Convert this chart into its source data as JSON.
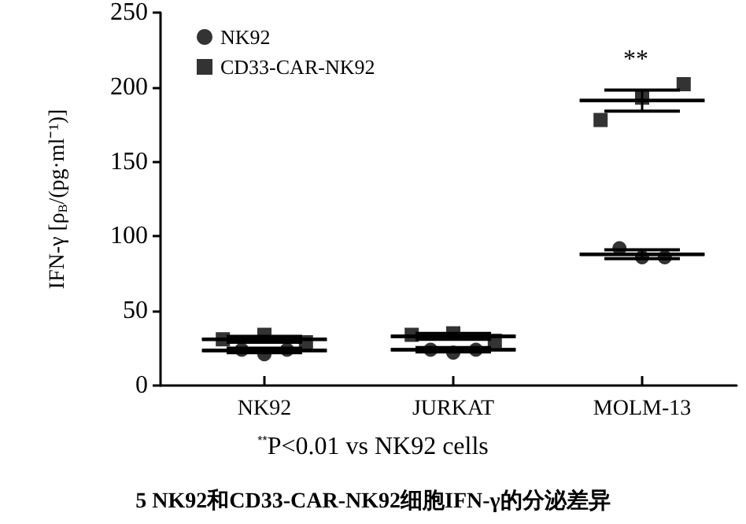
{
  "chart_data": {
    "type": "scatter",
    "title": "5 NK92和CD33-CAR-NK92细胞IFN-γ的分泌差异",
    "ylabel": "IFN-γ [ρ$_{B}$/(pg·ml⁻¹)]",
    "categories": [
      "NK92",
      "JURKAT",
      "MOLM-13"
    ],
    "series": [
      {
        "name": "NK92",
        "marker": "circle",
        "color": "#000000",
        "x": [
          "NK92",
          "NK92",
          "NK92",
          "JURKAT",
          "JURKAT",
          "JURKAT",
          "MOLM-13",
          "MOLM-13",
          "MOLM-13"
        ],
        "values": [
          24,
          21,
          24,
          24,
          22,
          24,
          92,
          86,
          86
        ]
      },
      {
        "name": "CD33-CAR-NK92",
        "marker": "square",
        "color": "#000000",
        "x": [
          "NK92",
          "NK92",
          "NK92",
          "JURKAT",
          "JURKAT",
          "JURKAT",
          "MOLM-13",
          "MOLM-13",
          "MOLM-13"
        ],
        "values": [
          31,
          34,
          29,
          34,
          35,
          30,
          178,
          193,
          202
        ]
      },
      {
        "type": "box",
        "color": "#000000",
        "boxes": [
          {
            "low": 22,
            "q1": 23.5,
            "median": 23.5,
            "q3": 23.5,
            "high": 25
          },
          {
            "low": 22.5,
            "q1": 24,
            "median": 24,
            "q3": 24,
            "high": 25.5
          },
          {
            "low": 85,
            "q1": 88,
            "median": 88,
            "q3": 88,
            "high": 91
          }
        ]
      },
      {
        "type": "box",
        "color": "#000000",
        "boxes": [
          {
            "low": 29,
            "q1": 31,
            "median": 31,
            "q3": 31,
            "high": 33
          },
          {
            "low": 31,
            "q1": 33,
            "median": 33,
            "q3": 33,
            "high": 35
          },
          {
            "low": 184,
            "q1": 191,
            "median": 191,
            "q3": 191,
            "high": 198
          }
        ]
      }
    ],
    "ylim": [
      0,
      250
    ],
    "yticks": [
      0,
      50,
      100,
      150,
      200,
      250
    ],
    "grid": false,
    "legend": "top left",
    "annotations": [
      "**",
      "$^{**}$P<0.01 vs NK92 cells"
    ]
  }
}
